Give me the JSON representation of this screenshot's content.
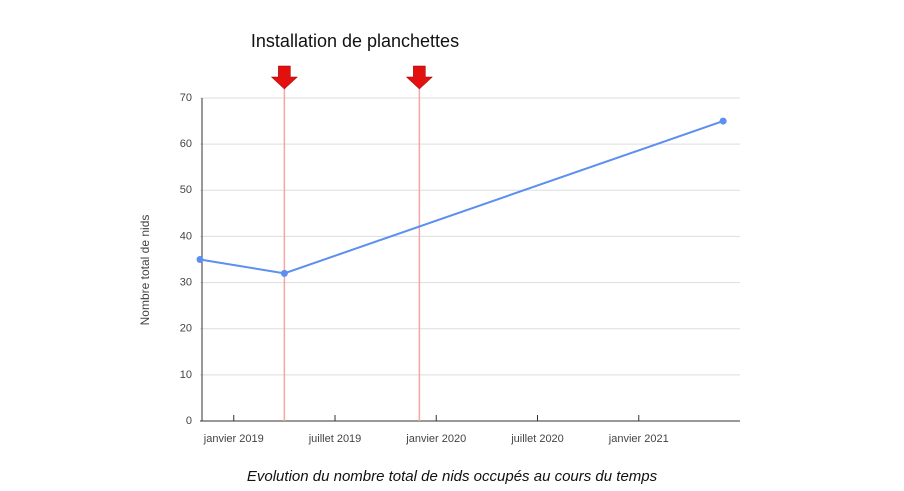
{
  "chart_data": {
    "type": "line",
    "annotation": "Installation de planchettes",
    "caption": "Evolution du nombre total de nids occupés au cours du temps",
    "y_label": "Nombre total de nids",
    "x": [
      "2018-11",
      "2019-04",
      "2021-06"
    ],
    "series": [
      {
        "name": "Nombre total de nids",
        "color": "#5b8ff0",
        "values": [
          35,
          32,
          65
        ]
      }
    ],
    "markers": [
      "2019-04",
      "2019-12"
    ],
    "marker_color": "#f4a6a6",
    "arrow_color": "#e31010",
    "xlim": [
      "2018-11",
      "2021-07"
    ],
    "xticks": [
      {
        "value": "2019-01",
        "label": "janvier 2019"
      },
      {
        "value": "2019-07",
        "label": "juillet 2019"
      },
      {
        "value": "2020-01",
        "label": "janvier 2020"
      },
      {
        "value": "2020-07",
        "label": "juillet 2020"
      },
      {
        "value": "2021-01",
        "label": "janvier 2021"
      }
    ],
    "ylim": [
      0,
      70
    ],
    "yticks": [
      0,
      10,
      20,
      30,
      40,
      50,
      60,
      70
    ],
    "grid": true
  }
}
